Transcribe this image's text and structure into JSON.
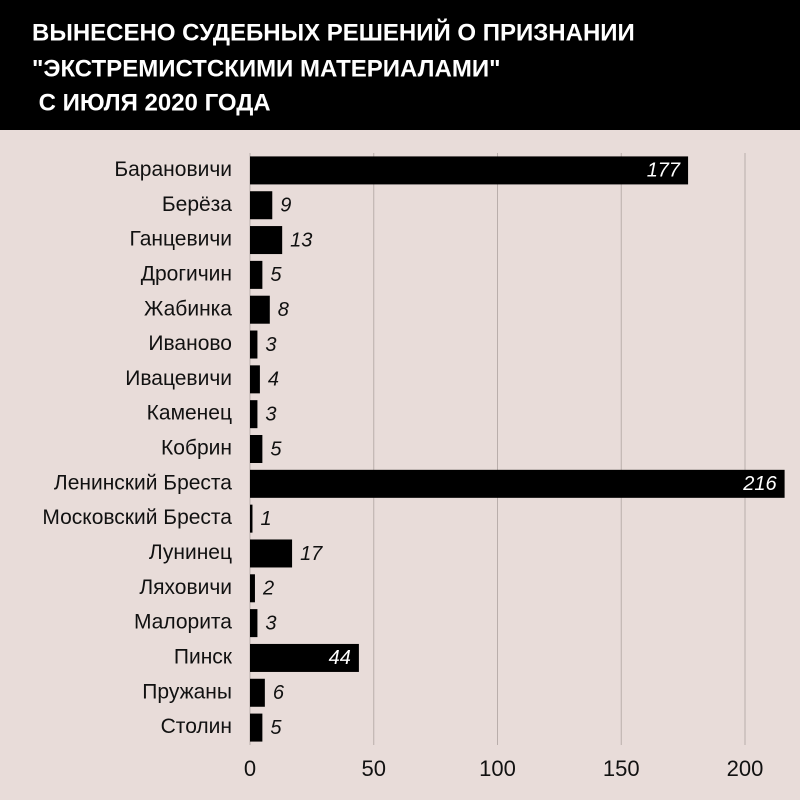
{
  "chart_data": {
    "type": "bar",
    "orientation": "horizontal",
    "title": [
      "ВЫНЕСЕНО СУДЕБНЫХ РЕШЕНИЙ О ПРИЗНАНИИ",
      "\"ЭКСТРЕМИСТСКИМИ МАТЕРИАЛАМИ\"",
      " С ИЮЛЯ 2020 ГОДА"
    ],
    "categories": [
      "Барановичи",
      "Берёза",
      "Ганцевичи",
      "Дрогичин",
      "Жабинка",
      "Иваново",
      "Ивацевичи",
      "Каменец",
      "Кобрин",
      "Ленинский Бреста",
      "Московский Бреста",
      "Лунинец",
      "Ляховичи",
      "Малорита",
      "Пинск",
      "Пружаны",
      "Столин"
    ],
    "values": [
      177,
      9,
      13,
      5,
      8,
      3,
      4,
      3,
      5,
      216,
      1,
      17,
      2,
      3,
      44,
      6,
      5
    ],
    "color": "#000000",
    "xlim": [
      0,
      216
    ],
    "xticks": [
      0,
      50,
      100,
      150,
      200
    ],
    "grid": true
  }
}
